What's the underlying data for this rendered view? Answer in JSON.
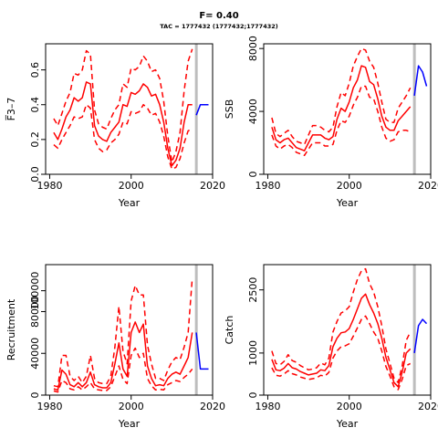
{
  "header": {
    "title": "F= 0.40",
    "subtitle": "TAC = 1777432 (1777432;1777432)"
  },
  "colors": {
    "estimate": "#ff0000",
    "forecast": "#0000ff",
    "marker_line": "#bdbdbd",
    "axis": "#000000"
  },
  "chart_data": [
    {
      "type": "line",
      "title": "",
      "xlabel": "Year",
      "ylabel": "F̅3–7",
      "xlim": [
        1979,
        2020
      ],
      "ylim": [
        0,
        0.75
      ],
      "xticks": [
        1980,
        2000,
        2020
      ],
      "yticks": [
        0,
        0.2,
        0.4,
        0.6
      ],
      "ytick_labels": [
        "0.0",
        "0.2",
        "0.4",
        "0.6"
      ],
      "grid": false,
      "vline_x": 2016,
      "x": [
        1981,
        1982,
        1983,
        1984,
        1985,
        1986,
        1987,
        1988,
        1989,
        1990,
        1991,
        1992,
        1993,
        1994,
        1995,
        1996,
        1997,
        1998,
        1999,
        2000,
        2001,
        2002,
        2003,
        2004,
        2005,
        2006,
        2007,
        2008,
        2009,
        2010,
        2011,
        2012,
        2013,
        2014,
        2015
      ],
      "series": [
        {
          "role": "estimate",
          "style": "solid",
          "values": [
            0.24,
            0.2,
            0.26,
            0.33,
            0.37,
            0.44,
            0.42,
            0.44,
            0.53,
            0.52,
            0.28,
            0.22,
            0.2,
            0.19,
            0.24,
            0.27,
            0.3,
            0.4,
            0.39,
            0.47,
            0.46,
            0.48,
            0.52,
            0.5,
            0.45,
            0.46,
            0.4,
            0.3,
            0.15,
            0.05,
            0.08,
            0.15,
            0.3,
            0.4,
            0.4
          ]
        },
        {
          "role": "upper",
          "style": "dashed",
          "values": [
            0.32,
            0.28,
            0.35,
            0.42,
            0.47,
            0.58,
            0.57,
            0.6,
            0.71,
            0.69,
            0.37,
            0.29,
            0.27,
            0.26,
            0.32,
            0.37,
            0.4,
            0.52,
            0.5,
            0.61,
            0.6,
            0.62,
            0.68,
            0.65,
            0.59,
            0.6,
            0.55,
            0.42,
            0.22,
            0.07,
            0.13,
            0.24,
            0.48,
            0.65,
            0.72
          ]
        },
        {
          "role": "lower",
          "style": "dashed",
          "values": [
            0.17,
            0.15,
            0.2,
            0.24,
            0.28,
            0.33,
            0.32,
            0.33,
            0.4,
            0.38,
            0.2,
            0.15,
            0.13,
            0.14,
            0.18,
            0.2,
            0.23,
            0.3,
            0.29,
            0.36,
            0.35,
            0.36,
            0.4,
            0.38,
            0.34,
            0.35,
            0.3,
            0.22,
            0.1,
            0.03,
            0.04,
            0.09,
            0.18,
            0.25,
            0.26
          ]
        }
      ],
      "forecast": {
        "x": [
          2016,
          2017,
          2018,
          2019
        ],
        "values": [
          0.34,
          0.4,
          0.4,
          0.4
        ]
      }
    },
    {
      "type": "line",
      "title": "",
      "xlabel": "Year",
      "ylabel": "SSB",
      "xlim": [
        1979,
        2020
      ],
      "ylim": [
        0,
        8300
      ],
      "xticks": [
        1980,
        2000,
        2020
      ],
      "yticks": [
        0,
        4000,
        8000
      ],
      "ytick_labels": [
        "0",
        "4000",
        "8000"
      ],
      "grid": false,
      "vline_x": 2016,
      "x": [
        1981,
        1982,
        1983,
        1984,
        1985,
        1986,
        1987,
        1988,
        1989,
        1990,
        1991,
        1992,
        1993,
        1994,
        1995,
        1996,
        1997,
        1998,
        1999,
        2000,
        2001,
        2002,
        2003,
        2004,
        2005,
        2006,
        2007,
        2008,
        2009,
        2010,
        2011,
        2012,
        2013,
        2014,
        2015
      ],
      "series": [
        {
          "role": "estimate",
          "style": "solid",
          "values": [
            3000,
            2200,
            2000,
            2200,
            2300,
            2000,
            1700,
            1600,
            1500,
            2000,
            2500,
            2500,
            2500,
            2300,
            2200,
            2400,
            3500,
            4200,
            4000,
            4600,
            5500,
            6000,
            6900,
            6800,
            5900,
            5700,
            4800,
            3700,
            3000,
            2800,
            2800,
            3400,
            3700,
            4000,
            4300
          ]
        },
        {
          "role": "upper",
          "style": "dashed",
          "values": [
            3600,
            2600,
            2400,
            2600,
            2800,
            2400,
            2100,
            2000,
            1900,
            2500,
            3100,
            3100,
            3000,
            2800,
            2700,
            3000,
            4300,
            5200,
            5000,
            5800,
            6900,
            7500,
            8000,
            7900,
            7200,
            6800,
            5800,
            4600,
            3500,
            3300,
            3300,
            4200,
            4600,
            5000,
            5500
          ]
        },
        {
          "role": "lower",
          "style": "dashed",
          "values": [
            2500,
            1800,
            1600,
            1800,
            1900,
            1700,
            1400,
            1300,
            1200,
            1600,
            2000,
            2000,
            2000,
            1800,
            1800,
            1900,
            2800,
            3400,
            3300,
            3700,
            4400,
            4900,
            5600,
            5600,
            4900,
            4800,
            4000,
            3000,
            2300,
            2100,
            2200,
            2700,
            2800,
            2800,
            2700
          ]
        }
      ],
      "forecast": {
        "x": [
          2016,
          2017,
          2018,
          2019
        ],
        "values": [
          5000,
          6900,
          6500,
          5600
        ]
      }
    },
    {
      "type": "line",
      "title": "",
      "xlabel": "Year",
      "ylabel": "Recruitment",
      "xlim": [
        1979,
        2020
      ],
      "ylim": [
        0,
        125000
      ],
      "xticks": [
        1980,
        2000,
        2020
      ],
      "yticks": [
        0,
        40000,
        80000,
        100000
      ],
      "ytick_labels": [
        "0",
        "40000",
        "80000",
        "100000"
      ],
      "grid": false,
      "vline_x": 2016,
      "x": [
        1981,
        1982,
        1983,
        1984,
        1985,
        1986,
        1987,
        1988,
        1989,
        1990,
        1991,
        1992,
        1993,
        1994,
        1995,
        1996,
        1997,
        1998,
        1999,
        2000,
        2001,
        2002,
        2003,
        2004,
        2005,
        2006,
        2007,
        2008,
        2009,
        2010,
        2011,
        2012,
        2013,
        2014,
        2015
      ],
      "series": [
        {
          "role": "estimate",
          "style": "solid",
          "values": [
            6000,
            5000,
            24000,
            20000,
            10000,
            8000,
            12000,
            8000,
            12000,
            22000,
            10000,
            8000,
            7000,
            7000,
            12000,
            30000,
            50000,
            25000,
            18000,
            60000,
            70000,
            60000,
            68000,
            28000,
            16000,
            9000,
            10000,
            9000,
            16000,
            20000,
            22000,
            20000,
            28000,
            36000,
            60000
          ]
        },
        {
          "role": "upper",
          "style": "dashed",
          "values": [
            9000,
            8000,
            38000,
            38000,
            18000,
            14000,
            18000,
            12000,
            18000,
            38000,
            16000,
            12000,
            11000,
            11000,
            18000,
            46000,
            85000,
            42000,
            30000,
            90000,
            105000,
            96000,
            96000,
            48000,
            30000,
            16000,
            16000,
            14000,
            24000,
            32000,
            36000,
            34000,
            46000,
            60000,
            112000
          ]
        },
        {
          "role": "lower",
          "style": "dashed",
          "values": [
            4000,
            3000,
            14000,
            12000,
            6000,
            5000,
            8000,
            5000,
            8000,
            12000,
            6000,
            5000,
            4500,
            4500,
            8000,
            18000,
            28000,
            15000,
            11000,
            38000,
            45000,
            36000,
            40000,
            16000,
            9000,
            5000,
            5500,
            5000,
            10000,
            12000,
            14000,
            13000,
            17000,
            20000,
            25000
          ]
        }
      ],
      "forecast": {
        "x": [
          2016,
          2017,
          2018,
          2019
        ],
        "values": [
          60000,
          25000,
          25000,
          25000
        ]
      }
    },
    {
      "type": "line",
      "title": "",
      "xlabel": "Year",
      "ylabel": "Catch",
      "xlim": [
        1979,
        2020
      ],
      "ylim": [
        0,
        3100
      ],
      "xticks": [
        1980,
        2000,
        2020
      ],
      "yticks": [
        0,
        1000,
        2500
      ],
      "ytick_labels": [
        "0",
        "1000",
        "2500"
      ],
      "grid": false,
      "vline_x": 2016,
      "x": [
        1981,
        1982,
        1983,
        1984,
        1985,
        1986,
        1987,
        1988,
        1989,
        1990,
        1991,
        1992,
        1993,
        1994,
        1995,
        1996,
        1997,
        1998,
        1999,
        2000,
        2001,
        2002,
        2003,
        2004,
        2005,
        2006,
        2007,
        2008,
        2009,
        2010,
        2011,
        2012,
        2013,
        2014,
        2015
      ],
      "series": [
        {
          "role": "estimate",
          "style": "solid",
          "values": [
            850,
            600,
            580,
            640,
            750,
            650,
            620,
            560,
            520,
            480,
            500,
            520,
            600,
            580,
            700,
            1150,
            1350,
            1480,
            1500,
            1580,
            1800,
            2050,
            2300,
            2400,
            2150,
            1950,
            1700,
            1350,
            900,
            600,
            300,
            200,
            550,
            1000,
            1100
          ]
        },
        {
          "role": "upper",
          "style": "dashed",
          "values": [
            1050,
            750,
            720,
            800,
            960,
            820,
            780,
            700,
            650,
            600,
            620,
            650,
            760,
            720,
            880,
            1500,
            1750,
            1950,
            2000,
            2100,
            2450,
            2750,
            2950,
            3000,
            2650,
            2450,
            2100,
            1650,
            1100,
            750,
            400,
            300,
            700,
            1300,
            1500
          ]
        },
        {
          "role": "lower",
          "style": "dashed",
          "values": [
            650,
            470,
            450,
            500,
            580,
            510,
            480,
            430,
            400,
            370,
            390,
            410,
            470,
            450,
            540,
            880,
            1050,
            1150,
            1170,
            1220,
            1400,
            1600,
            1800,
            1880,
            1700,
            1500,
            1350,
            1050,
            680,
            450,
            200,
            130,
            380,
            700,
            750
          ]
        }
      ],
      "forecast": {
        "x": [
          2016,
          2017,
          2018,
          2019
        ],
        "values": [
          1000,
          1650,
          1800,
          1700
        ]
      }
    }
  ]
}
